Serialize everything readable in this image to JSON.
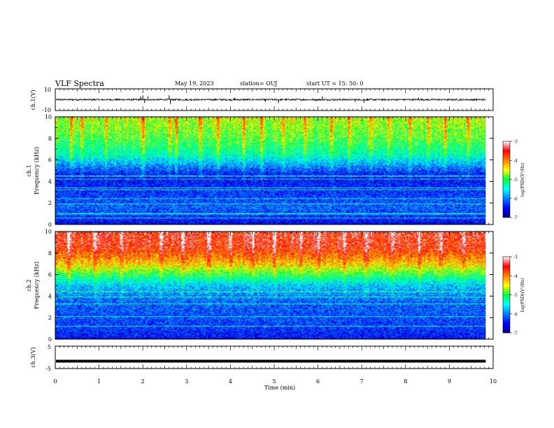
{
  "header": {
    "title": "VLF Spectra",
    "date": "May 19, 2023",
    "station": "station= OUJ",
    "start": "start  UT  =   15: 50: 0"
  },
  "chart_data": [
    {
      "type": "line",
      "name": "ch1-waveform",
      "ylabel": "ch.1(V)",
      "ylim": [
        -10,
        10
      ],
      "y_ticks": [
        "10",
        "-10"
      ],
      "xlim": [
        0,
        10
      ],
      "data_xmax": 9.83,
      "baseline": 0,
      "spikes": [
        {
          "x": 1.95,
          "y": 3
        },
        {
          "x": 2.0,
          "y": 4
        },
        {
          "x": 2.04,
          "y": -3
        },
        {
          "x": 2.12,
          "y": 3
        },
        {
          "x": 2.6,
          "y": 4
        },
        {
          "x": 2.63,
          "y": -4
        },
        {
          "x": 4.1,
          "y": 2
        },
        {
          "x": 4.8,
          "y": -2
        },
        {
          "x": 5.1,
          "y": -3
        },
        {
          "x": 6.1,
          "y": 3
        },
        {
          "x": 6.85,
          "y": -2
        },
        {
          "x": 7.05,
          "y": -3
        },
        {
          "x": 8.3,
          "y": 2
        }
      ]
    },
    {
      "type": "heatmap",
      "name": "ch1-spectrogram",
      "ylabel": "ch.1\nFrequency  (kHz)",
      "xlim": [
        0,
        10
      ],
      "data_xmax": 9.83,
      "ylim": [
        0,
        10
      ],
      "y_ticks": [
        0,
        2,
        4,
        6,
        8,
        10
      ],
      "colorbar": {
        "label": "log(PSD)(V²/Hz)",
        "ticks": [
          "-3",
          "-4",
          "-5",
          "-6",
          "-7"
        ],
        "range": [
          -7,
          -3
        ]
      },
      "profile": [
        {
          "f": 10,
          "v": -4.6
        },
        {
          "f": 8,
          "v": -4.9
        },
        {
          "f": 6.5,
          "v": -5.3
        },
        {
          "f": 5.5,
          "v": -5.9
        },
        {
          "f": 4.5,
          "v": -6.5
        },
        {
          "f": 3,
          "v": -6.3
        },
        {
          "f": 1.5,
          "v": -6.1
        },
        {
          "f": 0.5,
          "v": -6.4
        },
        {
          "f": 0,
          "v": -6.6
        }
      ],
      "horizontal_lines_khz": [
        0.6,
        1.0,
        1.9,
        2.4,
        3.2,
        3.4,
        4.2,
        4.5
      ],
      "bursts_min": [
        0.35,
        0.6,
        1.15,
        2.0,
        2.6,
        2.75,
        3.3,
        3.7,
        4.3,
        4.7,
        5.2,
        5.7,
        6.3,
        6.7,
        7.2,
        7.6,
        8.1,
        8.5,
        8.9,
        9.4
      ]
    },
    {
      "type": "heatmap",
      "name": "ch2-spectrogram",
      "ylabel": "ch.2\nFrequency  (kHz)",
      "xlim": [
        0,
        10
      ],
      "data_xmax": 9.83,
      "ylim": [
        0,
        10
      ],
      "y_ticks": [
        0,
        2,
        4,
        6,
        8,
        10
      ],
      "colorbar": {
        "label": "log(PSD)(V²/Hz)",
        "ticks": [
          "-3",
          "-4",
          "-5",
          "-6",
          "-7"
        ],
        "range": [
          -7,
          -3
        ]
      },
      "profile": [
        {
          "f": 10,
          "v": -3.5
        },
        {
          "f": 8.5,
          "v": -3.6
        },
        {
          "f": 7,
          "v": -4.3
        },
        {
          "f": 6,
          "v": -5.0
        },
        {
          "f": 5,
          "v": -5.7
        },
        {
          "f": 3.5,
          "v": -6.1
        },
        {
          "f": 2,
          "v": -6.2
        },
        {
          "f": 1,
          "v": -6.3
        },
        {
          "f": 0,
          "v": -6.5
        }
      ],
      "horizontal_lines_khz": [
        1.2,
        2.1,
        3.3,
        3.9,
        4.4
      ],
      "bursts_min": [
        0.3,
        0.9,
        1.5,
        2.4,
        2.9,
        3.5,
        4.0,
        4.5,
        5.0,
        5.6,
        6.0,
        6.6,
        7.1,
        7.7,
        8.3,
        8.8,
        9.3
      ]
    },
    {
      "type": "line",
      "name": "ch3-waveform",
      "ylabel": "ch.3(V)",
      "ylim": [
        -5,
        5
      ],
      "y_ticks": [
        "5",
        "-5"
      ],
      "xlim": [
        0,
        10
      ],
      "data_xmax": 9.83,
      "level": -1.7
    }
  ],
  "x_axis": {
    "label": "Time  (min)",
    "ticks": [
      "0",
      "1",
      "2",
      "3",
      "4",
      "5",
      "6",
      "7",
      "8",
      "9",
      "10"
    ]
  }
}
